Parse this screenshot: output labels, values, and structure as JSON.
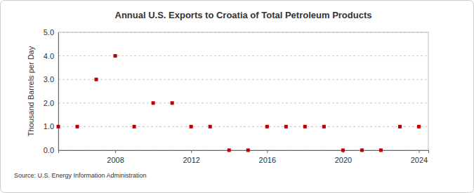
{
  "chart_data": {
    "type": "scatter",
    "title": "Annual U.S. Exports to Croatia of Total Petroleum Products",
    "y_label": "Thousand Barrels per Day",
    "source": "Source: U.S. Energy Information Administration",
    "x": [
      2005,
      2006,
      2007,
      2008,
      2009,
      2010,
      2011,
      2012,
      2013,
      2014,
      2015,
      2016,
      2017,
      2018,
      2019,
      2020,
      2021,
      2022,
      2023,
      2024
    ],
    "values": [
      1,
      1,
      3,
      4,
      1,
      2,
      2,
      1,
      1,
      0,
      0,
      1,
      1,
      1,
      1,
      0,
      0,
      0,
      1,
      1
    ],
    "color": "#c00000",
    "marker": "square",
    "xlim": [
      2005,
      2024.5
    ],
    "xticks": [
      2008,
      2012,
      2016,
      2020,
      2024
    ],
    "ylim": [
      0,
      5
    ],
    "yticks": [
      {
        "value": 0,
        "label": "0.0"
      },
      {
        "value": 1,
        "label": "1.0"
      },
      {
        "value": 2,
        "label": "2.0"
      },
      {
        "value": 3,
        "label": "3.0"
      },
      {
        "value": 4,
        "label": "4.0"
      },
      {
        "value": 5,
        "label": "5.0"
      }
    ],
    "grid": true
  }
}
